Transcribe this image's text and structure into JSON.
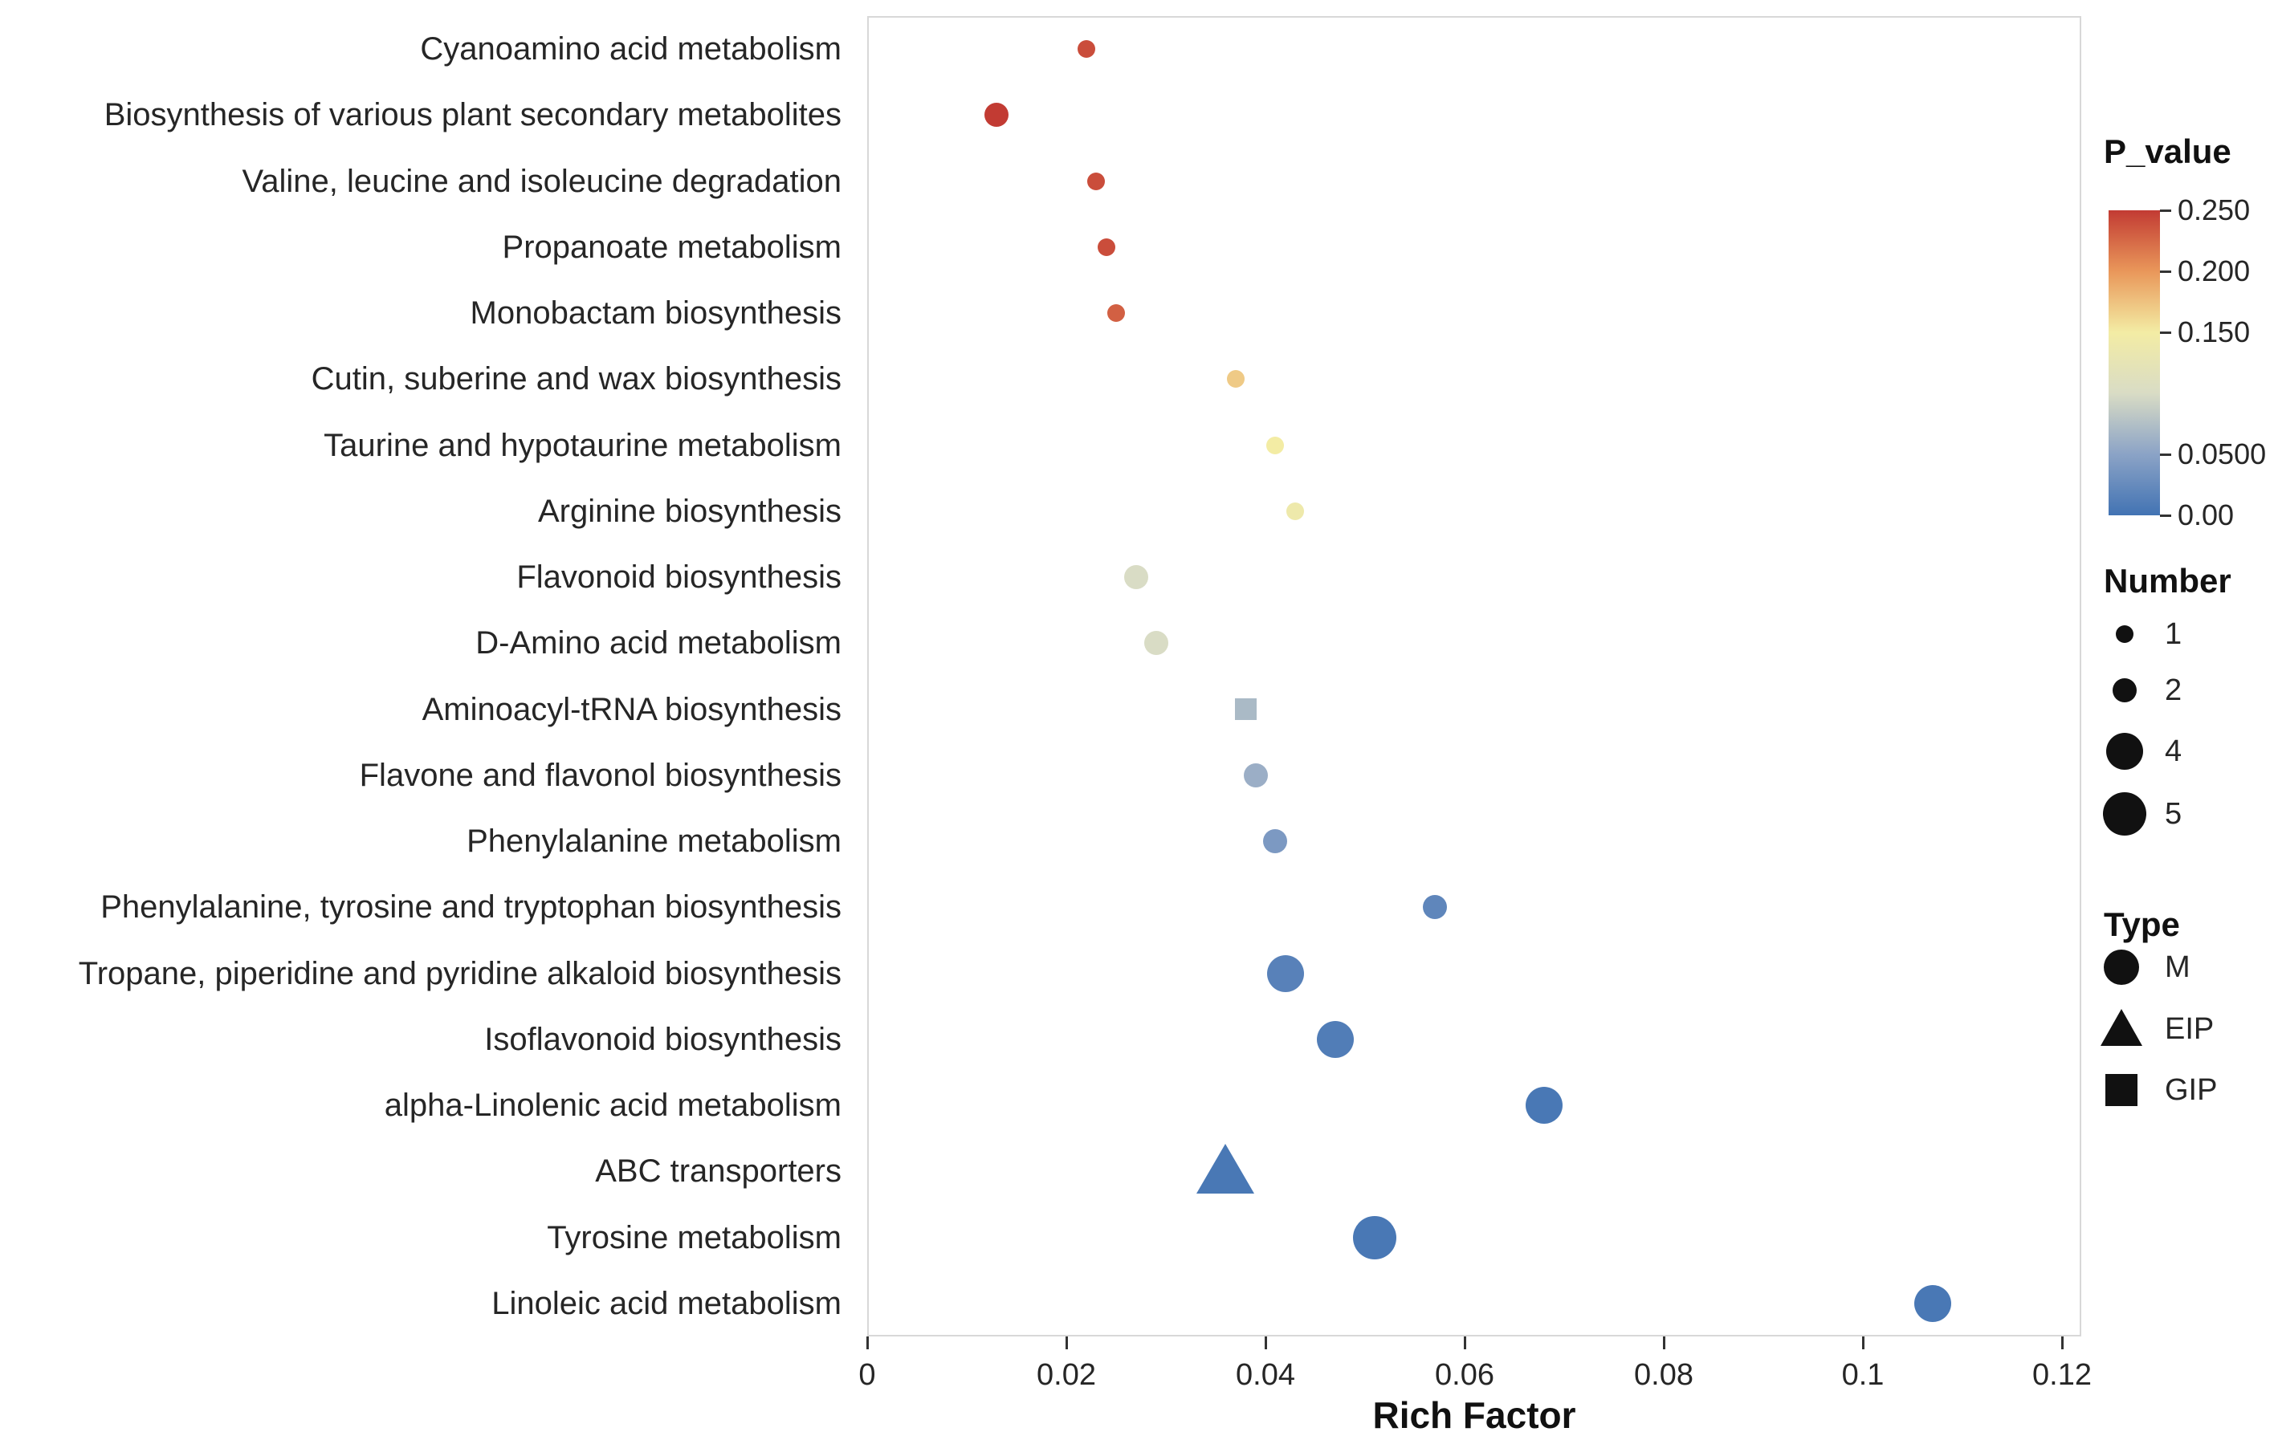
{
  "chart_data": {
    "type": "scatter",
    "title": "",
    "xlabel": "Rich Factor",
    "ylabel": "",
    "xlim": [
      0,
      0.12
    ],
    "x_ticks": [
      0,
      0.02,
      0.04,
      0.06,
      0.08,
      0.1,
      0.12
    ],
    "x_tick_labels": [
      "0",
      "0.02",
      "0.04",
      "0.06",
      "0.08",
      "0.1",
      "0.12"
    ],
    "grid": false,
    "legend_position": "right",
    "points": [
      {
        "pathway": "Cyanoamino acid metabolism",
        "rich_factor": 0.022,
        "p_value": 0.24,
        "number": 1,
        "type": "M"
      },
      {
        "pathway": "Biosynthesis of various plant secondary metabolites",
        "rich_factor": 0.013,
        "p_value": 0.25,
        "number": 2,
        "type": "M"
      },
      {
        "pathway": "Valine, leucine and isoleucine degradation",
        "rich_factor": 0.023,
        "p_value": 0.24,
        "number": 1,
        "type": "M"
      },
      {
        "pathway": "Propanoate metabolism",
        "rich_factor": 0.024,
        "p_value": 0.24,
        "number": 1,
        "type": "M"
      },
      {
        "pathway": "Monobactam biosynthesis",
        "rich_factor": 0.025,
        "p_value": 0.23,
        "number": 1,
        "type": "M"
      },
      {
        "pathway": "Cutin, suberine and wax biosynthesis",
        "rich_factor": 0.037,
        "p_value": 0.17,
        "number": 1,
        "type": "M"
      },
      {
        "pathway": "Taurine and hypotaurine metabolism",
        "rich_factor": 0.041,
        "p_value": 0.15,
        "number": 1,
        "type": "M"
      },
      {
        "pathway": "Arginine biosynthesis",
        "rich_factor": 0.043,
        "p_value": 0.14,
        "number": 1,
        "type": "M"
      },
      {
        "pathway": "Flavonoid biosynthesis",
        "rich_factor": 0.027,
        "p_value": 0.1,
        "number": 2,
        "type": "M"
      },
      {
        "pathway": "D-Amino acid metabolism",
        "rich_factor": 0.029,
        "p_value": 0.1,
        "number": 2,
        "type": "M"
      },
      {
        "pathway": "Aminoacyl-tRNA biosynthesis",
        "rich_factor": 0.038,
        "p_value": 0.07,
        "number": 2,
        "type": "GIP"
      },
      {
        "pathway": "Flavone and flavonol biosynthesis",
        "rich_factor": 0.039,
        "p_value": 0.06,
        "number": 2,
        "type": "M"
      },
      {
        "pathway": "Phenylalanine metabolism",
        "rich_factor": 0.041,
        "p_value": 0.04,
        "number": 2,
        "type": "M"
      },
      {
        "pathway": "Phenylalanine, tyrosine and tryptophan biosynthesis",
        "rich_factor": 0.057,
        "p_value": 0.02,
        "number": 2,
        "type": "M"
      },
      {
        "pathway": "Tropane, piperidine and pyridine alkaloid biosynthesis",
        "rich_factor": 0.042,
        "p_value": 0.015,
        "number": 4,
        "type": "M"
      },
      {
        "pathway": "Isoflavonoid biosynthesis",
        "rich_factor": 0.047,
        "p_value": 0.01,
        "number": 4,
        "type": "M"
      },
      {
        "pathway": "alpha-Linolenic acid metabolism",
        "rich_factor": 0.068,
        "p_value": 0.005,
        "number": 4,
        "type": "M"
      },
      {
        "pathway": "ABC transporters",
        "rich_factor": 0.036,
        "p_value": 0.005,
        "number": 5,
        "type": "EIP"
      },
      {
        "pathway": "Tyrosine metabolism",
        "rich_factor": 0.051,
        "p_value": 0.005,
        "number": 5,
        "type": "M"
      },
      {
        "pathway": "Linoleic acid metabolism",
        "rich_factor": 0.107,
        "p_value": 0.005,
        "number": 4,
        "type": "M"
      }
    ],
    "legends": {
      "p_value": {
        "title": "P_value",
        "tick_labels": [
          "0.250",
          "0.200",
          "0.150",
          "0.0500",
          "0.00"
        ],
        "tick_values": [
          0.25,
          0.2,
          0.15,
          0.05,
          0.0
        ],
        "max_value": 0.25,
        "gradient_stops": [
          {
            "value": 0.0,
            "color": "#4273b3"
          },
          {
            "value": 0.05,
            "color": "#8ba3c6"
          },
          {
            "value": 0.1,
            "color": "#d9dcc5"
          },
          {
            "value": 0.15,
            "color": "#f3eca4"
          },
          {
            "value": 0.2,
            "color": "#e9975a"
          },
          {
            "value": 0.25,
            "color": "#c23b33"
          }
        ]
      },
      "number": {
        "title": "Number",
        "items": [
          1,
          2,
          4,
          5
        ]
      },
      "type": {
        "title": "Type",
        "items": [
          {
            "label": "M",
            "shape": "circle"
          },
          {
            "label": "EIP",
            "shape": "triangle"
          },
          {
            "label": "GIP",
            "shape": "square"
          }
        ]
      }
    },
    "colors": {
      "legend_glyph": "#111111",
      "axis_text": "#262626",
      "panel_border": "#d8d8d8"
    }
  }
}
